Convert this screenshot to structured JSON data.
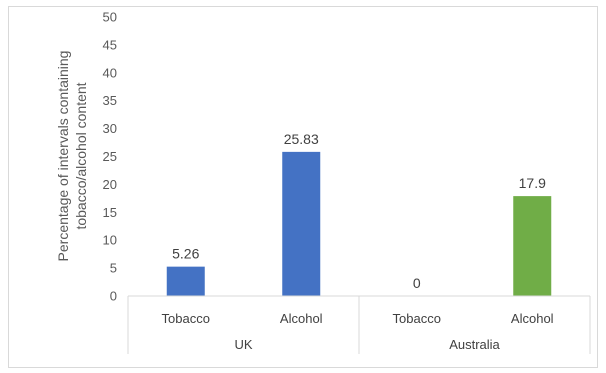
{
  "chart_data": {
    "type": "bar",
    "ylabel_lines": [
      "Percentage of intervals containing",
      "tobacco/alcohol content"
    ],
    "ylim": [
      0,
      50
    ],
    "yticks": [
      0,
      5,
      10,
      15,
      20,
      25,
      30,
      35,
      40,
      45,
      50
    ],
    "grid": false,
    "groups": [
      {
        "label": "UK",
        "bars": [
          {
            "category": "Tobacco",
            "value": 5.26,
            "label": "5.26",
            "color": "#4472c4"
          },
          {
            "category": "Alcohol",
            "value": 25.83,
            "label": "25.83",
            "color": "#4472c4"
          }
        ]
      },
      {
        "label": "Australia",
        "bars": [
          {
            "category": "Tobacco",
            "value": 0,
            "label": "0",
            "color": "#70ad47"
          },
          {
            "category": "Alcohol",
            "value": 17.9,
            "label": "17.9",
            "color": "#70ad47"
          }
        ]
      }
    ]
  }
}
